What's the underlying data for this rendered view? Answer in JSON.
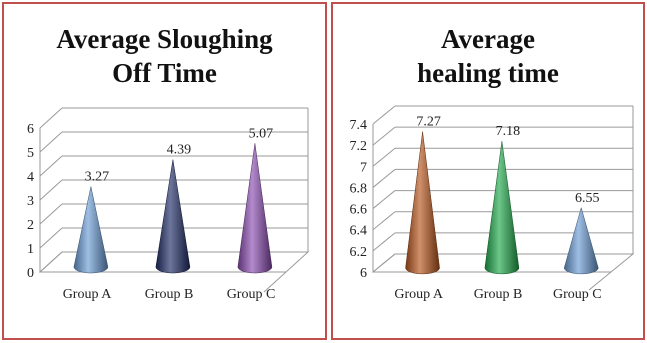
{
  "chart_data": [
    {
      "type": "bar",
      "style": "3d-cone",
      "title": "Average Sloughing Off Time",
      "categories": [
        "Group A",
        "Group B",
        "Group C"
      ],
      "values": [
        3.27,
        4.39,
        5.07
      ],
      "value_labels": [
        "3.27",
        "4.39",
        "5.07"
      ],
      "ylim": [
        0,
        6
      ],
      "yticks": [
        "0",
        "1",
        "2",
        "3",
        "4",
        "5",
        "6"
      ],
      "grid": true,
      "colors": [
        "#6a9bd4",
        "#1f2c66",
        "#8a4bb0"
      ]
    },
    {
      "type": "bar",
      "style": "3d-cone",
      "title": "Average healing time",
      "categories": [
        "Group A",
        "Group B",
        "Group C"
      ],
      "values": [
        7.27,
        7.18,
        6.55
      ],
      "value_labels": [
        "7.27",
        "7.18",
        "6.55"
      ],
      "ylim": [
        6,
        7.4
      ],
      "yticks": [
        "6",
        "6.2",
        "6.4",
        "6.6",
        "6.8",
        "7",
        "7.2",
        "7.4"
      ],
      "grid": true,
      "colors": [
        "#b5541c",
        "#1fa84a",
        "#6a9bd4"
      ]
    }
  ]
}
